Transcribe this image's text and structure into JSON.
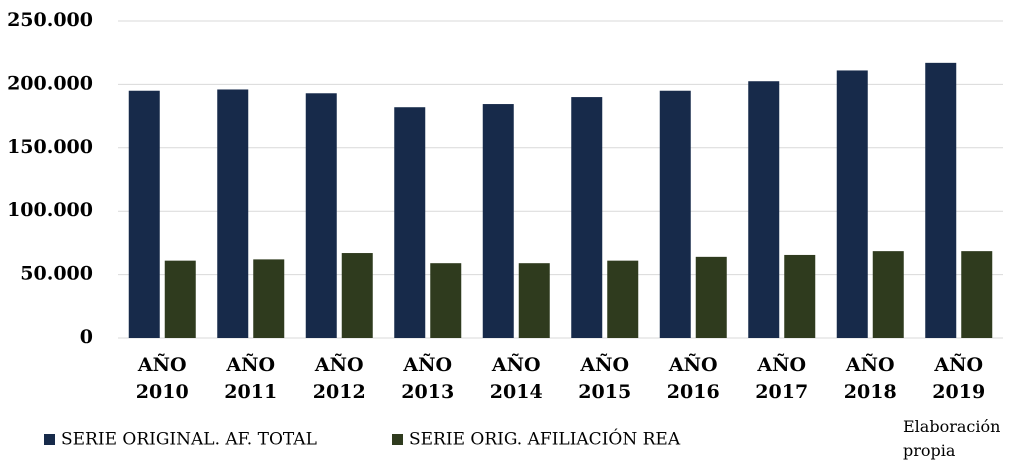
{
  "chart_data": {
    "type": "bar",
    "categories": [
      "AÑO 2010",
      "AÑO 2011",
      "AÑO 2012",
      "AÑO 2013",
      "AÑO 2014",
      "AÑO 2015",
      "AÑO 2016",
      "AÑO 2017",
      "AÑO 2018",
      "AÑO 2019"
    ],
    "series": [
      {
        "name": "SERIE ORIGINAL. AF. TOTAL",
        "color": "#172a4a",
        "values": [
          195000,
          196000,
          193000,
          182000,
          184500,
          190000,
          195000,
          202500,
          211000,
          217000
        ]
      },
      {
        "name": "SERIE ORIG. AFILIACIÓN REA",
        "color": "#2f3b1e",
        "values": [
          61000,
          62000,
          67000,
          59000,
          59000,
          61000,
          64000,
          65500,
          68500,
          68500
        ]
      }
    ],
    "ylim": [
      0,
      250000
    ],
    "yticks": [
      0,
      {
        "value": 50000,
        "label": "50.000"
      },
      {
        "value": 100000,
        "label": "100.000"
      },
      {
        "value": 150000,
        "label": "150.000"
      },
      {
        "value": 200000,
        "label": "200.000"
      },
      {
        "value": 250000,
        "label": "250.000"
      }
    ],
    "grid": true,
    "legend": "bottom",
    "annotation": "Elaboración propia"
  }
}
